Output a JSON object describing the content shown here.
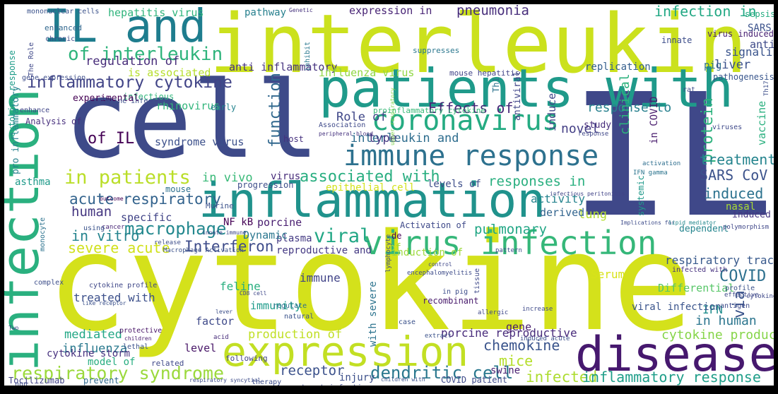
{
  "words": [
    {
      "text": "cytokine",
      "color": "#d4e11b"
    },
    {
      "text": "IL",
      "color": "#3f4889"
    },
    {
      "text": "cell",
      "color": "#3e4a89"
    },
    {
      "text": "interleukin",
      "color": "#cbe11d"
    },
    {
      "text": "infection",
      "color": "#2ab07f"
    },
    {
      "text": "patients with",
      "color": "#1f9a8a"
    },
    {
      "text": "inflammation",
      "color": "#20928c"
    },
    {
      "text": "disease",
      "color": "#46186e"
    },
    {
      "text": "expression",
      "color": "#c2df23"
    },
    {
      "text": "IL and",
      "color": "#1e7d8e"
    },
    {
      "text": "virus infection",
      "color": "#35b779"
    },
    {
      "text": "immune response",
      "color": "#2d718e"
    },
    {
      "text": "coronavirus",
      "color": "#25ab82"
    },
    {
      "text": "respiratory syndrome",
      "color": "#9bd93c"
    },
    {
      "text": "of interleukin",
      "color": "#2fb47c"
    },
    {
      "text": "in patients",
      "color": "#bade28"
    },
    {
      "text": "inflammatory cytokine",
      "color": "#414487"
    },
    {
      "text": "acute respiratory",
      "color": "#33638d"
    },
    {
      "text": "macrophage",
      "color": "#23888e"
    },
    {
      "text": "associated with",
      "color": "#28ae80"
    },
    {
      "text": "function",
      "color": "#31688e"
    },
    {
      "text": "protein",
      "color": "#2db27d"
    },
    {
      "text": "pneumonia",
      "color": "#472d7b"
    },
    {
      "text": "infection in",
      "color": "#22a884"
    },
    {
      "text": "Effects of",
      "color": "#482878"
    },
    {
      "text": "response to",
      "color": "#27808e"
    },
    {
      "text": "treatment",
      "color": "#25848e"
    },
    {
      "text": "SARS CoV",
      "color": "#3b528b"
    },
    {
      "text": "induced",
      "color": "#2c728e"
    },
    {
      "text": "COVID",
      "color": "#2d708e"
    },
    {
      "text": "viral",
      "color": "#22a785"
    },
    {
      "text": "dendritic cell",
      "color": "#2a788e"
    },
    {
      "text": "chemokine",
      "color": "#3a548c"
    },
    {
      "text": "mice",
      "color": "#b5de2b"
    },
    {
      "text": "infected",
      "color": "#addc30"
    },
    {
      "text": "inflammatory response",
      "color": "#1f9e89"
    },
    {
      "text": "cytokine production",
      "color": "#86d549"
    },
    {
      "text": "in human",
      "color": "#2b758e"
    },
    {
      "text": "Interferon",
      "color": "#3e4c8a"
    },
    {
      "text": "severe acute",
      "color": "#d0e11c"
    },
    {
      "text": "in vitro",
      "color": "#25848e"
    },
    {
      "text": "human",
      "color": "#453781"
    },
    {
      "text": "Role of",
      "color": "#3f4788"
    },
    {
      "text": "interleukin and",
      "color": "#2e6d8e"
    },
    {
      "text": "of IL",
      "color": "#440154"
    },
    {
      "text": "responses in",
      "color": "#29af7f"
    },
    {
      "text": "activity",
      "color": "#25838e"
    },
    {
      "text": "pulmonary",
      "color": "#21a685"
    },
    {
      "text": "regulation of",
      "color": "#472c7a"
    },
    {
      "text": "respiratory tract",
      "color": "#38598c"
    },
    {
      "text": "novel",
      "color": "#433e85"
    },
    {
      "text": "clinical",
      "color": "#2db27d"
    },
    {
      "text": "replication",
      "color": "#355f8d"
    },
    {
      "text": "type",
      "color": "#453882"
    },
    {
      "text": "treated with",
      "color": "#3c508b"
    },
    {
      "text": "mediated",
      "color": "#22a785"
    },
    {
      "text": "influenza",
      "color": "#29798e"
    },
    {
      "text": "receptor",
      "color": "#3b518b"
    },
    {
      "text": "immune",
      "color": "#414487"
    },
    {
      "text": "production of",
      "color": "#c0df25"
    },
    {
      "text": "porcine reproductive",
      "color": "#472a7a"
    },
    {
      "text": "expression in",
      "color": "#482475"
    },
    {
      "text": "anti inflammatory",
      "color": "#46337f"
    },
    {
      "text": "in vivo",
      "color": "#38b977"
    },
    {
      "text": "lung",
      "color": "#b2dd2d"
    },
    {
      "text": "derived",
      "color": "#32648e"
    },
    {
      "text": "specific",
      "color": "#414487"
    },
    {
      "text": "porcine",
      "color": "#481d6f"
    },
    {
      "text": "plasma",
      "color": "#443a83"
    },
    {
      "text": "feline",
      "color": "#29af7f"
    },
    {
      "text": "level",
      "color": "#481668"
    },
    {
      "text": "factor",
      "color": "#3e4989"
    },
    {
      "text": "gene",
      "color": "#481b6d"
    },
    {
      "text": "Serum",
      "color": "#d8e219"
    },
    {
      "text": "Differential",
      "color": "#56c667"
    },
    {
      "text": "IFN",
      "color": "#218e8d"
    },
    {
      "text": "via",
      "color": "#3a538b"
    },
    {
      "text": "viral infection",
      "color": "#3a548c"
    },
    {
      "text": "Dynamic",
      "color": "#2a768e"
    },
    {
      "text": "NF kB",
      "color": "#440154"
    },
    {
      "text": "induction of",
      "color": "#9dd93b"
    },
    {
      "text": "reproductive and",
      "color": "#443983"
    },
    {
      "text": "immunity",
      "color": "#1e9b8a"
    },
    {
      "text": "recombinant",
      "color": "#481a6c"
    },
    {
      "text": "cytokine storm",
      "color": "#46307e"
    },
    {
      "text": "model of",
      "color": "#27ad81"
    },
    {
      "text": "injury",
      "color": "#3c4f8a"
    },
    {
      "text": "swine",
      "color": "#481f70"
    },
    {
      "text": "COVID patient",
      "color": "#3e4a89"
    },
    {
      "text": "Tocilizumab",
      "color": "#414287"
    },
    {
      "text": "prevent",
      "color": "#31688e"
    },
    {
      "text": "hepatitis virus",
      "color": "#2fb47c"
    },
    {
      "text": "pathway",
      "color": "#27808e"
    },
    {
      "text": "mouse",
      "color": "#2d708e"
    },
    {
      "text": "syndrome virus",
      "color": "#3c508b"
    },
    {
      "text": "study",
      "color": "#472d7b"
    },
    {
      "text": "infectious",
      "color": "#31b57b"
    },
    {
      "text": "rhinovirus",
      "color": "#31b57b"
    },
    {
      "text": "early",
      "color": "#25848e"
    },
    {
      "text": "epithelial cell",
      "color": "#d2e21b"
    },
    {
      "text": "levels of",
      "color": "#3d4e8a"
    },
    {
      "text": "progression",
      "color": "#3d4d8a"
    },
    {
      "text": "virus",
      "color": "#472c7a"
    },
    {
      "text": "host",
      "color": "#46307e"
    },
    {
      "text": "induce",
      "color": "#3f4788"
    },
    {
      "text": "in COVID",
      "color": "#481b6d"
    },
    {
      "text": "antiviral",
      "color": "#404588"
    },
    {
      "text": "influenza virus",
      "color": "#90d743"
    },
    {
      "text": "is associated",
      "color": "#b5de2b"
    },
    {
      "text": "experimental",
      "color": "#440154"
    },
    {
      "text": "signaling",
      "color": "#3a548c"
    },
    {
      "text": "anti",
      "color": "#3e4a89"
    },
    {
      "text": "pig",
      "color": "#2d718e"
    },
    {
      "text": "liver",
      "color": "#3b518b"
    },
    {
      "text": "pathogenesis",
      "color": "#39568c"
    },
    {
      "text": "nasal",
      "color": "#a8db34"
    },
    {
      "text": "SARS",
      "color": "#3b528b"
    },
    {
      "text": "sepsis",
      "color": "#26ad81"
    },
    {
      "text": "virus induced",
      "color": "#482173"
    },
    {
      "text": "innate",
      "color": "#3d4d8a"
    },
    {
      "text": "systemic",
      "color": "#1f998a"
    },
    {
      "text": "induced by",
      "color": "#453581"
    },
    {
      "text": "dependent",
      "color": "#25858e"
    },
    {
      "text": "vaccine",
      "color": "#2ab07f"
    },
    {
      "text": "activation",
      "color": "#2e6e8e"
    },
    {
      "text": "IFN gamma",
      "color": "#2b748e"
    },
    {
      "text": "with severe",
      "color": "#2c738e"
    },
    {
      "text": "of",
      "color": "#a8db34"
    },
    {
      "text": "asthma",
      "color": "#1f9a8a"
    },
    {
      "text": "pro inflammatory",
      "color": "#26828e"
    },
    {
      "text": "cytokine response",
      "color": "#1e9c89"
    },
    {
      "text": "Analysis of",
      "color": "#472f7d"
    },
    {
      "text": "mononuclear cells",
      "color": "#3b528b"
    },
    {
      "text": "enhanced",
      "color": "#31678e"
    },
    {
      "text": "chronic",
      "color": "#3e4c8a"
    },
    {
      "text": "The Role",
      "color": "#3f4889"
    },
    {
      "text": "gene expression",
      "color": "#3d4d8a"
    },
    {
      "text": "enhance",
      "color": "#404588"
    },
    {
      "text": "Genetic",
      "color": "#46327e"
    },
    {
      "text": "suppresses",
      "color": "#2a778e"
    },
    {
      "text": "inhibit",
      "color": "#29798e"
    },
    {
      "text": "mouse hepatitis",
      "color": "#414487"
    },
    {
      "text": "Th1",
      "color": "#2c728e"
    },
    {
      "text": "proinflammatory cytokine",
      "color": "#38b977"
    },
    {
      "text": "Association",
      "color": "#3e4989"
    },
    {
      "text": "peripheral blood",
      "color": "#46337f"
    },
    {
      "text": "feline infectious",
      "color": "#3c508b"
    },
    {
      "text": "Murine",
      "color": "#3b518b"
    },
    {
      "text": "upper respiratory",
      "color": "#7fd34e"
    },
    {
      "text": "cancer",
      "color": "#482677"
    },
    {
      "text": "outcome",
      "color": "#440154"
    },
    {
      "text": "monocyte",
      "color": "#2c728e"
    },
    {
      "text": "using",
      "color": "#3a538b"
    },
    {
      "text": "innate immune",
      "color": "#3e4989"
    },
    {
      "text": "release",
      "color": "#3d4d8a"
    },
    {
      "text": "Macrophage Activation",
      "color": "#3b528b"
    },
    {
      "text": "Activation of",
      "color": "#3e4989"
    },
    {
      "text": "Implications for",
      "color": "#3e4c8a"
    },
    {
      "text": "lipid mediator",
      "color": "#23898e"
    },
    {
      "text": "de",
      "color": "#440154"
    },
    {
      "text": "infectious peritonitis",
      "color": "#414487"
    },
    {
      "text": "complex",
      "color": "#3d4e8a"
    },
    {
      "text": "cytokine profile",
      "color": "#3f4788"
    },
    {
      "text": "like receptor",
      "color": "#3b518b"
    },
    {
      "text": "CD8 cell",
      "color": "#3f4889"
    },
    {
      "text": "regulate",
      "color": "#2e6e8e"
    },
    {
      "text": "natural",
      "color": "#3a538b"
    },
    {
      "text": "lever",
      "color": "#3c4f8a"
    },
    {
      "text": "protective",
      "color": "#481467"
    },
    {
      "text": "children",
      "color": "#481b6d"
    },
    {
      "text": "acid",
      "color": "#472c7a"
    },
    {
      "text": "lethal",
      "color": "#3b528b"
    },
    {
      "text": "related",
      "color": "#3f4889"
    },
    {
      "text": "following",
      "color": "#414487"
    },
    {
      "text": "respiratory syncytial",
      "color": "#3e4c8a"
    },
    {
      "text": "therapy",
      "color": "#3d4d8a"
    },
    {
      "text": "children with",
      "color": "#3b528b"
    },
    {
      "text": "tract infection",
      "color": "#3e4a89"
    },
    {
      "text": "non",
      "color": "#3e4c8a"
    },
    {
      "text": "Two",
      "color": "#3f4788"
    },
    {
      "text": "in pig",
      "color": "#3d4e8a"
    },
    {
      "text": "extract",
      "color": "#3b528b"
    },
    {
      "text": "tissue",
      "color": "#3e4989"
    },
    {
      "text": "allergic",
      "color": "#3f4889"
    },
    {
      "text": "increase",
      "color": "#3e4a89"
    },
    {
      "text": "induced acute",
      "color": "#3c508b"
    },
    {
      "text": "infected with",
      "color": "#46307e"
    },
    {
      "text": "encephalomyelitis",
      "color": "#3e4c8a"
    },
    {
      "text": "control",
      "color": "#3f4889"
    },
    {
      "text": "pattern",
      "color": "#3d4d8a"
    },
    {
      "text": "antigen",
      "color": "#3e4a89"
    },
    {
      "text": "polymorphism",
      "color": "#3f4788"
    },
    {
      "text": "profile",
      "color": "#3b528b"
    },
    {
      "text": "effective",
      "color": "#3e4989"
    },
    {
      "text": "cytokine",
      "color": "#3f4889"
    },
    {
      "text": "rat",
      "color": "#3e4c8a"
    },
    {
      "text": "Th17",
      "color": "#3d4e8a"
    },
    {
      "text": "viruses",
      "color": "#3e4989"
    },
    {
      "text": "response",
      "color": "#3f4788"
    },
    {
      "text": "case",
      "color": "#3b528b"
    },
    {
      "text": "lymphocyte",
      "color": "#3e4a89"
    }
  ]
}
